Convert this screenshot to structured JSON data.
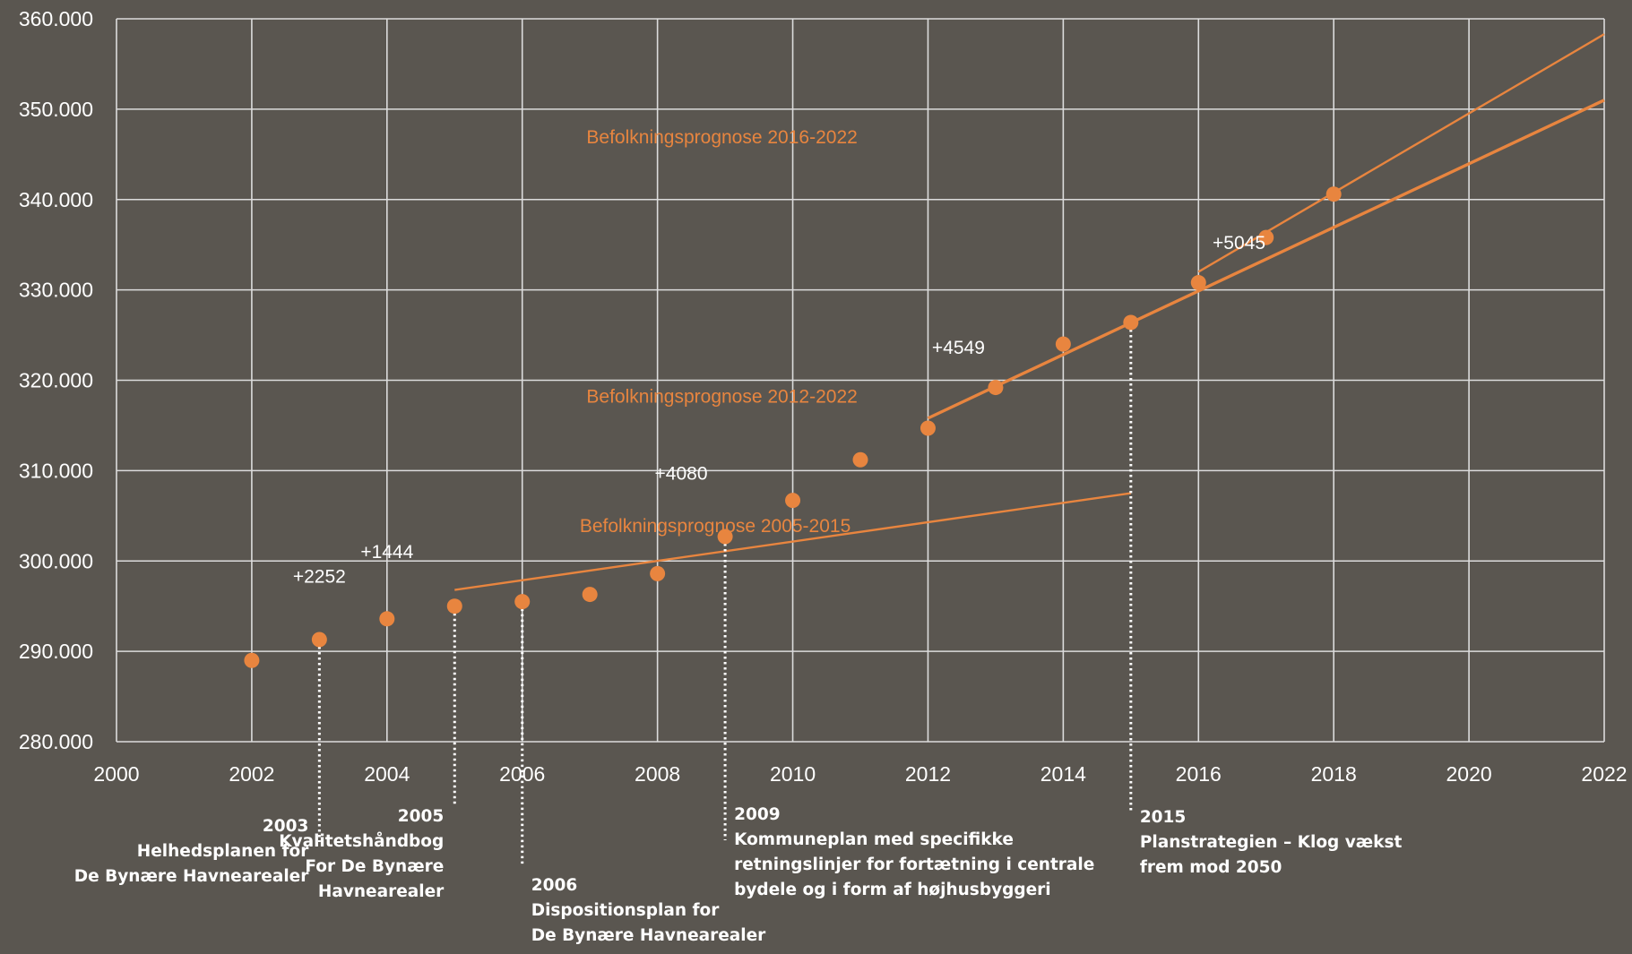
{
  "chart_data": {
    "type": "scatter",
    "title": "",
    "xlabel": "",
    "ylabel": "",
    "xlim": [
      2000,
      2022
    ],
    "ylim": [
      280000,
      360000
    ],
    "x_ticks": [
      2000,
      2002,
      2004,
      2006,
      2008,
      2010,
      2012,
      2014,
      2016,
      2018,
      2020,
      2022
    ],
    "x_tick_labels": [
      "2000",
      "2002",
      "2004",
      "2006",
      "2008",
      "2010",
      "2012",
      "2014",
      "2016",
      "2018",
      "2020",
      "2022"
    ],
    "y_ticks": [
      280000,
      290000,
      300000,
      310000,
      320000,
      330000,
      340000,
      350000,
      360000
    ],
    "y_tick_labels": [
      "280.000",
      "290.000",
      "300.000",
      "310.000",
      "320.000",
      "330.000",
      "340.000",
      "350.000",
      "360.000"
    ],
    "grid": true,
    "legend": "none",
    "colors": {
      "background": "#5a5650",
      "grid": "#dcdcdc",
      "accent": "#e8853f",
      "text": "#ffffff"
    },
    "series": [
      {
        "x": [
          2002,
          2003,
          2004,
          2005,
          2006,
          2007,
          2008,
          2009,
          2010,
          2011,
          2012,
          2013,
          2014,
          2015,
          2016,
          2017,
          2018
        ],
        "y": [
          289000,
          291300,
          293600,
          295000,
          295500,
          296300,
          298600,
          302700,
          306700,
          311200,
          314700,
          319200,
          324000,
          326400,
          330800,
          335800,
          340600
        ]
      }
    ],
    "forecasts": [
      {
        "label": "Befolkningsprognose 2005-2015",
        "x": [
          2005,
          2015
        ],
        "y": [
          296800,
          307500
        ]
      },
      {
        "label": "Befolkningsprognose 2012-2022",
        "x": [
          2012,
          2022
        ],
        "y": [
          315800,
          351000
        ]
      },
      {
        "label": "Befolkningsprognose 2016-2022",
        "x": [
          2016,
          2022
        ],
        "y": [
          332000,
          358300
        ]
      }
    ],
    "forecast_label_positions": [
      {
        "label_x": 2006.85,
        "label_y": 303200
      },
      {
        "label_x": 2006.95,
        "label_y": 317500
      },
      {
        "label_x": 2006.95,
        "label_y": 346200
      }
    ],
    "delta_annotations": [
      {
        "text": "+2252",
        "x": 2003.0,
        "y": 297600
      },
      {
        "text": "+1444",
        "x": 2004.0,
        "y": 300300
      },
      {
        "text": "+4080",
        "x": 2008.35,
        "y": 309000
      },
      {
        "text": "+4549",
        "x": 2012.45,
        "y": 322900
      },
      {
        "text": "+5045",
        "x": 2016.6,
        "y": 334500
      }
    ],
    "milestones": [
      {
        "year": 2003,
        "title": "2003",
        "lines": [
          "Helhedsplanen for",
          "De Bynære Havnearealer"
        ],
        "align": "end"
      },
      {
        "year": 2005,
        "title": "2005",
        "lines": [
          "Kvalitetshåndbog",
          "For De Bynære",
          "Havnearealer"
        ],
        "align": "end"
      },
      {
        "year": 2006,
        "title": "2006",
        "lines": [
          "Dispositionsplan  for",
          "De Bynære Havnearealer"
        ],
        "align": "start"
      },
      {
        "year": 2009,
        "title": "2009",
        "lines": [
          "Kommuneplan med specifikke",
          "retningslinjer for fortætning i centrale",
          "bydele og i form af højhusbyggeri"
        ],
        "align": "start"
      },
      {
        "year": 2015,
        "title": "2015",
        "lines": [
          "Planstrategien – Klog vækst",
          "frem mod 2050"
        ],
        "align": "start"
      }
    ]
  }
}
